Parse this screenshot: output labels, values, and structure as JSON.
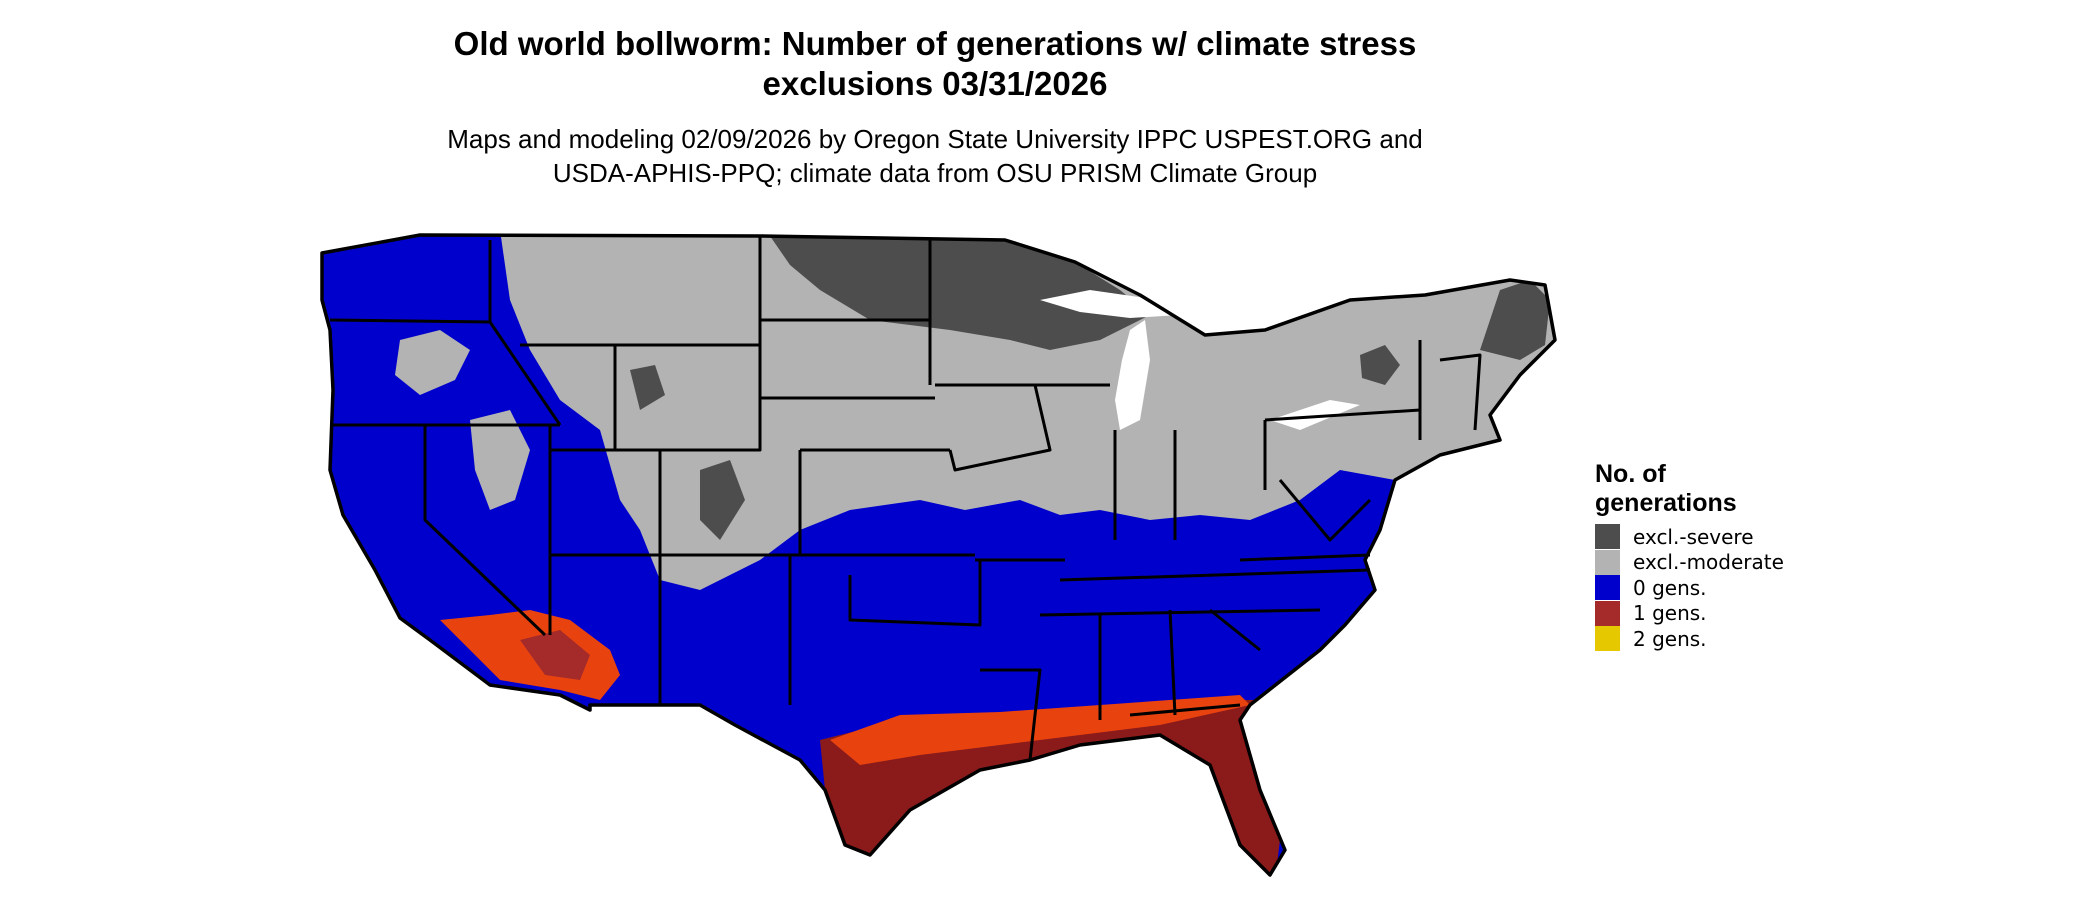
{
  "title_line1": "Old world bollworm: Number of generations w/ climate stress",
  "title_line2": "exclusions 03/31/2026",
  "subtitle_line1": "Maps and modeling 02/09/2026 by Oregon State University IPPC USPEST.ORG and",
  "subtitle_line2": "USDA-APHIS-PPQ; climate data from OSU PRISM Climate Group",
  "legend": {
    "title_line1": "No. of",
    "title_line2": "generations",
    "items": [
      {
        "label": "excl.-severe",
        "color": "#4d4d4d"
      },
      {
        "label": "excl.-moderate",
        "color": "#b3b3b3"
      },
      {
        "label": "0 gens.",
        "color": "#0000cc"
      },
      {
        "label": "1 gens.",
        "color": "#a52a2a"
      },
      {
        "label": "2 gens.",
        "color": "#e6c800"
      }
    ]
  },
  "colors": {
    "excl_severe": "#4d4d4d",
    "excl_moderate": "#b3b3b3",
    "gens_0": "#0000cc",
    "gens_1": "#8b1a1a",
    "gens_1_transition": "#e8430f",
    "gens_2": "#e6c800",
    "lakes": "#ffffff",
    "borders": "#000000"
  }
}
